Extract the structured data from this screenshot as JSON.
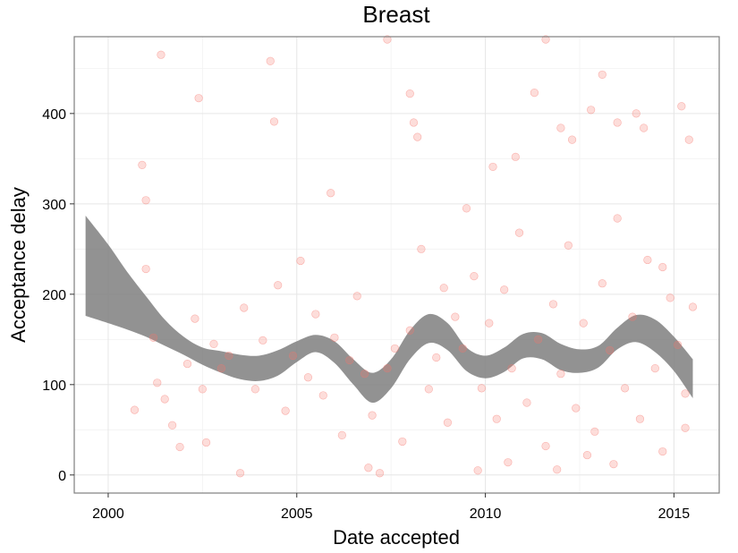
{
  "chart_data": {
    "type": "scatter",
    "title": "Breast",
    "xlabel": "Date accepted",
    "ylabel": "Acceptance delay",
    "xlim": [
      1999.1,
      2016.2
    ],
    "ylim": [
      -20,
      485
    ],
    "xticks": [
      2000,
      2005,
      2010,
      2015
    ],
    "yticks": [
      0,
      100,
      200,
      300,
      400
    ],
    "grid": true,
    "legend": "none",
    "point_color": "#f8766d",
    "band_color": "#7f7f7f",
    "points": [
      [
        2000.7,
        72
      ],
      [
        2000.9,
        343
      ],
      [
        2001.0,
        304
      ],
      [
        2001.4,
        465
      ],
      [
        2002.4,
        417
      ],
      [
        2002.6,
        36
      ],
      [
        2003.5,
        2
      ],
      [
        2004.3,
        458
      ],
      [
        2004.4,
        391
      ],
      [
        2005.9,
        312
      ],
      [
        2006.9,
        8
      ],
      [
        2007.2,
        2
      ],
      [
        2007.4,
        482
      ],
      [
        2007.4,
        118
      ],
      [
        2008.0,
        422
      ],
      [
        2008.1,
        390
      ],
      [
        2008.2,
        374
      ],
      [
        2008.9,
        207
      ],
      [
        2009.5,
        295
      ],
      [
        2009.8,
        5
      ],
      [
        2010.2,
        341
      ],
      [
        2010.8,
        352
      ],
      [
        2011.3,
        423
      ],
      [
        2011.6,
        482
      ],
      [
        2012.0,
        384
      ],
      [
        2012.3,
        371
      ],
      [
        2012.8,
        404
      ],
      [
        2013.1,
        443
      ],
      [
        2013.5,
        390
      ],
      [
        2014.0,
        400
      ],
      [
        2014.2,
        384
      ],
      [
        2014.7,
        230
      ],
      [
        2015.2,
        408
      ],
      [
        2015.4,
        371
      ],
      [
        2015.3,
        52
      ],
      [
        2001.0,
        228
      ],
      [
        2001.2,
        152
      ],
      [
        2001.3,
        102
      ],
      [
        2001.5,
        84
      ],
      [
        2001.7,
        55
      ],
      [
        2001.9,
        31
      ],
      [
        2002.1,
        123
      ],
      [
        2002.3,
        173
      ],
      [
        2002.5,
        95
      ],
      [
        2002.8,
        145
      ],
      [
        2003.0,
        118
      ],
      [
        2003.2,
        132
      ],
      [
        2003.6,
        185
      ],
      [
        2003.9,
        95
      ],
      [
        2004.1,
        149
      ],
      [
        2004.5,
        210
      ],
      [
        2004.7,
        71
      ],
      [
        2004.9,
        132
      ],
      [
        2005.1,
        237
      ],
      [
        2005.3,
        108
      ],
      [
        2005.5,
        178
      ],
      [
        2005.7,
        88
      ],
      [
        2006.0,
        152
      ],
      [
        2006.2,
        44
      ],
      [
        2006.4,
        127
      ],
      [
        2006.6,
        198
      ],
      [
        2006.8,
        112
      ],
      [
        2007.0,
        66
      ],
      [
        2007.6,
        140
      ],
      [
        2007.8,
        37
      ],
      [
        2008.0,
        160
      ],
      [
        2008.3,
        250
      ],
      [
        2008.5,
        95
      ],
      [
        2008.7,
        130
      ],
      [
        2009.0,
        58
      ],
      [
        2009.2,
        175
      ],
      [
        2009.4,
        140
      ],
      [
        2009.7,
        220
      ],
      [
        2009.9,
        96
      ],
      [
        2010.1,
        168
      ],
      [
        2010.3,
        62
      ],
      [
        2010.5,
        205
      ],
      [
        2010.7,
        118
      ],
      [
        2010.9,
        268
      ],
      [
        2011.1,
        80
      ],
      [
        2011.4,
        150
      ],
      [
        2011.6,
        32
      ],
      [
        2011.8,
        189
      ],
      [
        2012.0,
        112
      ],
      [
        2012.2,
        254
      ],
      [
        2012.4,
        74
      ],
      [
        2012.6,
        168
      ],
      [
        2012.9,
        48
      ],
      [
        2013.1,
        212
      ],
      [
        2013.3,
        138
      ],
      [
        2013.5,
        284
      ],
      [
        2013.7,
        96
      ],
      [
        2013.9,
        175
      ],
      [
        2014.1,
        62
      ],
      [
        2014.3,
        238
      ],
      [
        2014.5,
        118
      ],
      [
        2014.7,
        26
      ],
      [
        2014.9,
        196
      ],
      [
        2015.1,
        144
      ],
      [
        2015.3,
        90
      ],
      [
        2015.5,
        186
      ],
      [
        2013.4,
        12
      ],
      [
        2012.7,
        22
      ],
      [
        2011.9,
        6
      ],
      [
        2010.6,
        14
      ]
    ],
    "smooth_band": {
      "x": [
        1999.4,
        2000.0,
        2000.5,
        2001.0,
        2001.5,
        2002.0,
        2002.5,
        2003.0,
        2003.5,
        2004.0,
        2004.5,
        2005.0,
        2005.5,
        2006.0,
        2006.5,
        2007.0,
        2007.5,
        2008.0,
        2008.5,
        2009.0,
        2009.5,
        2010.0,
        2010.5,
        2011.0,
        2011.5,
        2012.0,
        2012.5,
        2013.0,
        2013.5,
        2014.0,
        2014.5,
        2015.0,
        2015.5
      ],
      "upper": [
        287,
        255,
        225,
        198,
        172,
        153,
        141,
        137,
        133,
        132,
        138,
        148,
        155,
        148,
        128,
        113,
        128,
        160,
        178,
        168,
        141,
        132,
        141,
        156,
        157,
        145,
        139,
        143,
        163,
        177,
        172,
        153,
        128
      ],
      "lower": [
        176,
        168,
        161,
        153,
        143,
        133,
        122,
        113,
        106,
        104,
        110,
        125,
        136,
        124,
        100,
        80,
        96,
        128,
        146,
        138,
        115,
        107,
        114,
        129,
        128,
        116,
        113,
        119,
        139,
        147,
        136,
        115,
        85
      ]
    }
  }
}
